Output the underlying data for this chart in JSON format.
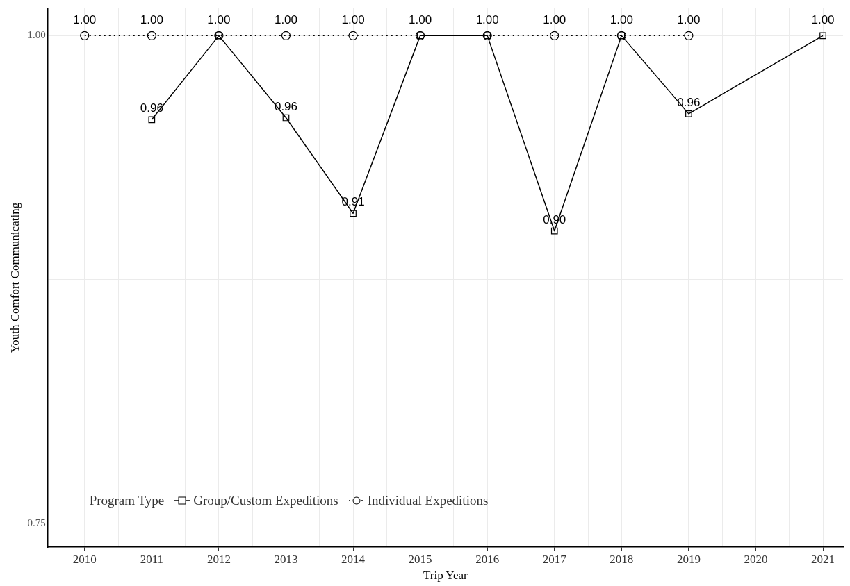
{
  "chart_data": {
    "type": "line",
    "xlabel": "Trip Year",
    "ylabel": "Youth Comfort Communicating",
    "xlim": [
      2009.45,
      2021.3
    ],
    "xticks": [
      2010,
      {
        "value": 2010.5,
        "label": null
      },
      2011,
      {
        "value": 2011.5,
        "label": null
      },
      2012,
      {
        "value": 2012.5,
        "label": null
      },
      2013,
      {
        "value": 2013.5,
        "label": null
      },
      2014,
      {
        "value": 2014.5,
        "label": null
      },
      2015,
      {
        "value": 2015.5,
        "label": null
      },
      2016,
      {
        "value": 2016.5,
        "label": null
      },
      2017,
      {
        "value": 2017.5,
        "label": null
      },
      2018,
      {
        "value": 2018.5,
        "label": null
      },
      2019,
      {
        "value": 2019.5,
        "label": null
      },
      2020,
      {
        "value": 2020.5,
        "label": null
      },
      2021
    ],
    "ylim": [
      0.738,
      1.014
    ],
    "yticks": [
      {
        "value": 0.75,
        "label": "0.75"
      },
      {
        "value": 0.875,
        "label": null
      },
      {
        "value": 1,
        "label": "1.00"
      }
    ],
    "grid": true,
    "legend": "bottom left",
    "legend_title": "Program Type",
    "series": [
      {
        "name": "Group/Custom Expeditions",
        "color": "#000000",
        "marker": "square",
        "line_style": "solid",
        "x": [
          2011,
          2012,
          2013,
          2014,
          2015,
          2016,
          2017,
          2018,
          2019,
          2021
        ],
        "values": [
          0.957,
          1,
          0.958,
          0.909,
          1,
          1,
          0.9,
          1,
          0.96,
          1
        ],
        "value_labels": [
          "0.96",
          null,
          "0.96",
          "0.91",
          null,
          null,
          "0.90",
          null,
          "0.96",
          "1.00"
        ]
      },
      {
        "name": "Individual Expeditions",
        "color": "#000000",
        "marker": "circle",
        "line_style": "dotted",
        "x": [
          2010,
          2011,
          2012,
          2013,
          2014,
          2015,
          2016,
          2017,
          2018,
          2019
        ],
        "values": [
          1,
          1,
          1,
          1,
          1,
          1,
          1,
          1,
          1,
          1
        ],
        "value_labels": [
          "1.00",
          "1.00",
          "1.00",
          "1.00",
          "1.00",
          "1.00",
          "1.00",
          "1.00",
          "1.00",
          "1.00"
        ]
      }
    ]
  }
}
